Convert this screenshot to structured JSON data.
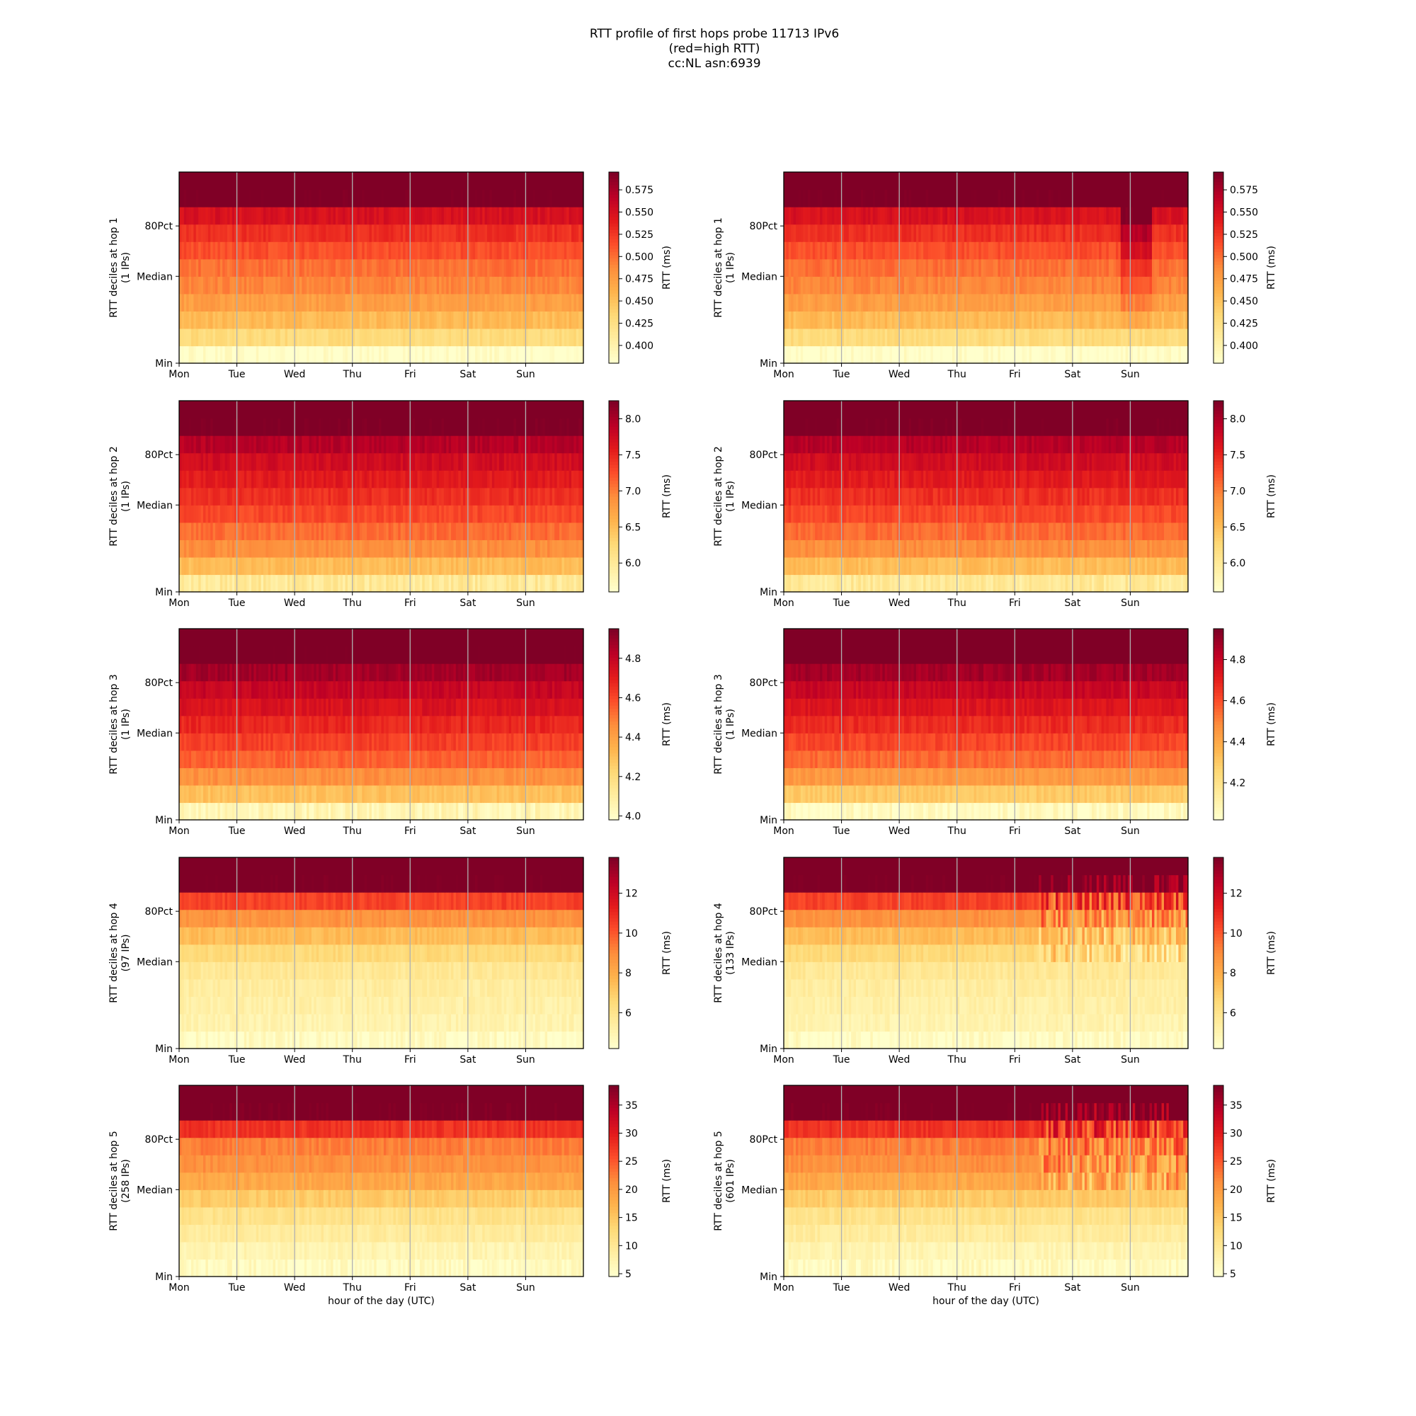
{
  "figure": {
    "title_lines": [
      "RTT profile of first hops probe 11713 IPv6",
      "(red=high RTT)",
      "cc:NL asn:6939"
    ]
  },
  "colors": {
    "colormap": [
      "#ffffcc",
      "#ffeda0",
      "#fed976",
      "#feb24c",
      "#fd8d3c",
      "#fc4e2a",
      "#e31a1c",
      "#bd0026",
      "#800026"
    ],
    "grid": "#b0b0b0",
    "axis": "#000000"
  },
  "chart_data": [
    {
      "type": "heatmap",
      "hop": 1,
      "column": "left",
      "ylabel": "RTT deciles at hop 1",
      "ylabel2": "(1 IPs)",
      "xticks": [
        "Mon",
        "Tue",
        "Wed",
        "Thu",
        "Fri",
        "Sat",
        "Sun"
      ],
      "xlabel": "",
      "yticks": [
        "Min",
        "Median",
        "80Pct"
      ],
      "colorbar_label": "RTT (ms)",
      "colorbar_ticks": [
        "0.400",
        "0.425",
        "0.450",
        "0.475",
        "0.500",
        "0.525",
        "0.550",
        "0.575"
      ],
      "colorbar_range": [
        0.38,
        0.595
      ],
      "decile_rtt": [
        0.38,
        0.43,
        0.455,
        0.475,
        0.49,
        0.5,
        0.515,
        0.53,
        0.55,
        0.6
      ]
    },
    {
      "type": "heatmap",
      "hop": 1,
      "column": "right",
      "ylabel": "RTT deciles at hop 1",
      "ylabel2": "(1 IPs)",
      "xticks": [
        "Mon",
        "Tue",
        "Wed",
        "Thu",
        "Fri",
        "Sat",
        "Sun"
      ],
      "xlabel": "",
      "yticks": [
        "Min",
        "Median",
        "80Pct"
      ],
      "colorbar_label": "RTT (ms)",
      "colorbar_ticks": [
        "0.400",
        "0.425",
        "0.450",
        "0.475",
        "0.500",
        "0.525",
        "0.550",
        "0.575"
      ],
      "colorbar_range": [
        0.38,
        0.595
      ],
      "decile_rtt": [
        0.38,
        0.43,
        0.455,
        0.475,
        0.49,
        0.5,
        0.515,
        0.53,
        0.55,
        0.6
      ],
      "anomaly": {
        "day_start": 5.8,
        "day_end": 6.35,
        "shift": 0.06
      }
    },
    {
      "type": "heatmap",
      "hop": 2,
      "column": "left",
      "ylabel": "RTT deciles at hop 2",
      "ylabel2": "(1 IPs)",
      "xticks": [
        "Mon",
        "Tue",
        "Wed",
        "Thu",
        "Fri",
        "Sat",
        "Sun"
      ],
      "xlabel": "",
      "yticks": [
        "Min",
        "Median",
        "80Pct"
      ],
      "colorbar_label": "RTT (ms)",
      "colorbar_ticks": [
        "6.0",
        "6.5",
        "7.0",
        "7.5",
        "8.0"
      ],
      "colorbar_range": [
        5.6,
        8.25
      ],
      "decile_rtt": [
        6.0,
        6.5,
        6.9,
        7.1,
        7.3,
        7.45,
        7.6,
        7.75,
        7.95,
        8.3
      ]
    },
    {
      "type": "heatmap",
      "hop": 2,
      "column": "right",
      "ylabel": "RTT deciles at hop 2",
      "ylabel2": "(1 IPs)",
      "xticks": [
        "Mon",
        "Tue",
        "Wed",
        "Thu",
        "Fri",
        "Sat",
        "Sun"
      ],
      "xlabel": "",
      "yticks": [
        "Min",
        "Median",
        "80Pct"
      ],
      "colorbar_label": "RTT (ms)",
      "colorbar_ticks": [
        "6.0",
        "6.5",
        "7.0",
        "7.5",
        "8.0"
      ],
      "colorbar_range": [
        5.6,
        8.25
      ],
      "decile_rtt": [
        6.0,
        6.5,
        6.9,
        7.1,
        7.3,
        7.45,
        7.6,
        7.75,
        7.95,
        8.3
      ]
    },
    {
      "type": "heatmap",
      "hop": 3,
      "column": "left",
      "ylabel": "RTT deciles at hop 3",
      "ylabel2": "(1 IPs)",
      "xticks": [
        "Mon",
        "Tue",
        "Wed",
        "Thu",
        "Fri",
        "Sat",
        "Sun"
      ],
      "xlabel": "",
      "yticks": [
        "Min",
        "Median",
        "80Pct"
      ],
      "colorbar_label": "RTT (ms)",
      "colorbar_ticks": [
        "4.0",
        "4.2",
        "4.4",
        "4.6",
        "4.8"
      ],
      "colorbar_range": [
        3.98,
        4.95
      ],
      "decile_rtt": [
        4.05,
        4.3,
        4.45,
        4.55,
        4.62,
        4.68,
        4.74,
        4.8,
        4.88,
        4.98
      ]
    },
    {
      "type": "heatmap",
      "hop": 3,
      "column": "right",
      "ylabel": "RTT deciles at hop 3",
      "ylabel2": "(1 IPs)",
      "xticks": [
        "Mon",
        "Tue",
        "Wed",
        "Thu",
        "Fri",
        "Sat",
        "Sun"
      ],
      "xlabel": "",
      "yticks": [
        "Min",
        "Median",
        "80Pct"
      ],
      "colorbar_label": "RTT (ms)",
      "colorbar_ticks": [
        "4.2",
        "4.4",
        "4.6",
        "4.8"
      ],
      "colorbar_range": [
        4.02,
        4.95
      ],
      "decile_rtt": [
        4.05,
        4.3,
        4.45,
        4.55,
        4.62,
        4.68,
        4.74,
        4.8,
        4.88,
        4.98
      ]
    },
    {
      "type": "heatmap",
      "hop": 4,
      "column": "left",
      "ylabel": "RTT deciles at hop 4",
      "ylabel2": "(97 IPs)",
      "xticks": [
        "Mon",
        "Tue",
        "Wed",
        "Thu",
        "Fri",
        "Sat",
        "Sun"
      ],
      "xlabel": "",
      "yticks": [
        "Min",
        "Median",
        "80Pct"
      ],
      "colorbar_label": "RTT (ms)",
      "colorbar_ticks": [
        "6",
        "8",
        "10",
        "12"
      ],
      "colorbar_range": [
        4.2,
        13.8
      ],
      "decile_rtt": [
        4.4,
        5.0,
        5.2,
        5.4,
        5.7,
        6.5,
        7.5,
        8.8,
        10.5,
        14.0
      ]
    },
    {
      "type": "heatmap",
      "hop": 4,
      "column": "right",
      "ylabel": "RTT deciles at hop 4",
      "ylabel2": "(133 IPs)",
      "xticks": [
        "Mon",
        "Tue",
        "Wed",
        "Thu",
        "Fri",
        "Sat",
        "Sun"
      ],
      "xlabel": "",
      "yticks": [
        "Min",
        "Median",
        "80Pct"
      ],
      "colorbar_label": "RTT (ms)",
      "colorbar_ticks": [
        "6",
        "8",
        "10",
        "12"
      ],
      "colorbar_range": [
        4.2,
        13.8
      ],
      "decile_rtt": [
        4.4,
        5.0,
        5.2,
        5.4,
        5.7,
        6.5,
        7.5,
        8.8,
        10.5,
        14.0
      ]
    },
    {
      "type": "heatmap",
      "hop": 5,
      "column": "left",
      "ylabel": "RTT deciles at hop 5",
      "ylabel2": "(258 IPs)",
      "xticks": [
        "Mon",
        "Tue",
        "Wed",
        "Thu",
        "Fri",
        "Sat",
        "Sun"
      ],
      "xlabel": "hour of the day (UTC)",
      "yticks": [
        "Min",
        "Median",
        "80Pct"
      ],
      "colorbar_label": "RTT (ms)",
      "colorbar_ticks": [
        "5",
        "10",
        "15",
        "20",
        "25",
        "30",
        "35"
      ],
      "colorbar_range": [
        4.5,
        38.5
      ],
      "decile_rtt": [
        5.5,
        7.0,
        9.0,
        11.0,
        14.5,
        18.5,
        21.0,
        22.5,
        28.0,
        39.0
      ]
    },
    {
      "type": "heatmap",
      "hop": 5,
      "column": "right",
      "ylabel": "RTT deciles at hop 5",
      "ylabel2": "(601 IPs)",
      "xticks": [
        "Mon",
        "Tue",
        "Wed",
        "Thu",
        "Fri",
        "Sat",
        "Sun"
      ],
      "xlabel": "hour of the day (UTC)",
      "yticks": [
        "Min",
        "Median",
        "80Pct"
      ],
      "colorbar_label": "RTT (ms)",
      "colorbar_ticks": [
        "5",
        "10",
        "15",
        "20",
        "25",
        "30",
        "35"
      ],
      "colorbar_range": [
        4.5,
        38.5
      ],
      "decile_rtt": [
        5.5,
        7.0,
        9.0,
        11.0,
        14.5,
        18.5,
        21.0,
        22.5,
        28.0,
        39.0
      ]
    }
  ]
}
